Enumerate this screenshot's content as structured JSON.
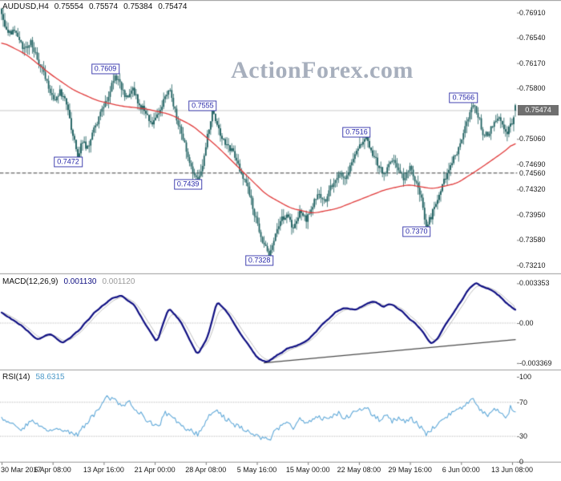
{
  "colors": {
    "background": "#ffffff",
    "candle": "#1d5f5f",
    "ma_line": "#e03a3a",
    "macd_line": "#0f0f82",
    "signal_line": "#bdbdbd",
    "trendline": "#4a4a4a",
    "rsi_line": "#5fa8d8",
    "watermark": "#a7afbd",
    "swing_label": "#2424a8",
    "separator": "#9b9b9b",
    "current_price_line": "#c8c8c8",
    "current_price_tag_bg": "#6f6f6f",
    "dashed_level_color": "#3a3a3a",
    "level_dotted": "#c4c4c4"
  },
  "price_panel": {
    "title": "AUDUSD,H4",
    "open": "0.75554",
    "high": "0.75574",
    "low": "0.75384",
    "close": "0.75474",
    "watermark": "ActionForex.com",
    "current_price_label": "0.75474",
    "dashed_level_label": "0.74560",
    "axis_labels": [
      "0.76910",
      "0.76540",
      "0.76170",
      "0.75800",
      "0.75060",
      "0.74690",
      "0.74320",
      "0.73950",
      "0.73580",
      "0.73210"
    ]
  },
  "macd_panel": {
    "title": "MACD(12,26,9)",
    "value_main": "0.001130",
    "value_signal": "0.001120",
    "axis_labels": [
      "0.003353",
      "0.00",
      "-0.003369"
    ]
  },
  "rsi_panel": {
    "title": "RSI(14)",
    "value": "58.6315",
    "axis_labels": [
      "100",
      "70",
      "30",
      "0"
    ]
  },
  "x_axis": {
    "labels": [
      "30 Mar 2017",
      "6 Apr 08:00",
      "13 Apr 16:00",
      "21 Apr 00:00",
      "28 Apr 08:00",
      "5 May 16:00",
      "15 May 00:00",
      "22 May 08:00",
      "29 May 16:00",
      "6 Jun 00:00",
      "13 Jun 08:00"
    ]
  },
  "chart_data": [
    {
      "type": "candlestick",
      "name": "AUDUSD H4",
      "n_candles": 318,
      "y_range": [
        0.7322,
        0.77
      ],
      "current_price": 0.75474,
      "dashed_level": 0.7456,
      "last_candle": {
        "open": 0.75554,
        "high": 0.75574,
        "low": 0.75384,
        "close": 0.75474
      },
      "close_waypoints": [
        [
          0,
          0.7685
        ],
        [
          4,
          0.7658
        ],
        [
          8,
          0.7668
        ],
        [
          14,
          0.7636
        ],
        [
          18,
          0.765
        ],
        [
          24,
          0.7612
        ],
        [
          28,
          0.7588
        ],
        [
          33,
          0.7562
        ],
        [
          36,
          0.7576
        ],
        [
          40,
          0.7556
        ],
        [
          44,
          0.7512
        ],
        [
          47,
          0.7478
        ],
        [
          50,
          0.7504
        ],
        [
          53,
          0.7492
        ],
        [
          57,
          0.752
        ],
        [
          61,
          0.7542
        ],
        [
          65,
          0.7562
        ],
        [
          70,
          0.76
        ],
        [
          73,
          0.7586
        ],
        [
          77,
          0.7566
        ],
        [
          81,
          0.758
        ],
        [
          85,
          0.7556
        ],
        [
          89,
          0.7546
        ],
        [
          93,
          0.7526
        ],
        [
          97,
          0.7542
        ],
        [
          101,
          0.757
        ],
        [
          104,
          0.7576
        ],
        [
          107,
          0.7546
        ],
        [
          110,
          0.752
        ],
        [
          114,
          0.749
        ],
        [
          118,
          0.746
        ],
        [
          121,
          0.7446
        ],
        [
          124,
          0.747
        ],
        [
          127,
          0.7512
        ],
        [
          130,
          0.7548
        ],
        [
          133,
          0.753
        ],
        [
          136,
          0.7506
        ],
        [
          140,
          0.7496
        ],
        [
          144,
          0.748
        ],
        [
          148,
          0.7456
        ],
        [
          152,
          0.7436
        ],
        [
          156,
          0.7396
        ],
        [
          160,
          0.736
        ],
        [
          165,
          0.7336
        ],
        [
          168,
          0.7356
        ],
        [
          172,
          0.7386
        ],
        [
          176,
          0.7396
        ],
        [
          180,
          0.7372
        ],
        [
          184,
          0.74
        ],
        [
          188,
          0.7386
        ],
        [
          192,
          0.741
        ],
        [
          196,
          0.7426
        ],
        [
          200,
          0.7416
        ],
        [
          204,
          0.744
        ],
        [
          208,
          0.7456
        ],
        [
          212,
          0.7446
        ],
        [
          216,
          0.747
        ],
        [
          220,
          0.749
        ],
        [
          225,
          0.7508
        ],
        [
          228,
          0.749
        ],
        [
          232,
          0.747
        ],
        [
          236,
          0.7452
        ],
        [
          240,
          0.7476
        ],
        [
          244,
          0.7466
        ],
        [
          248,
          0.7446
        ],
        [
          252,
          0.7462
        ],
        [
          256,
          0.744
        ],
        [
          259,
          0.7416
        ],
        [
          262,
          0.738
        ],
        [
          265,
          0.7392
        ],
        [
          268,
          0.7412
        ],
        [
          272,
          0.7438
        ],
        [
          276,
          0.7462
        ],
        [
          280,
          0.7482
        ],
        [
          284,
          0.7506
        ],
        [
          288,
          0.7536
        ],
        [
          291,
          0.7556
        ],
        [
          294,
          0.754
        ],
        [
          297,
          0.7516
        ],
        [
          300,
          0.751
        ],
        [
          303,
          0.7528
        ],
        [
          306,
          0.754
        ],
        [
          309,
          0.7528
        ],
        [
          312,
          0.7516
        ],
        [
          315,
          0.7532
        ],
        [
          317,
          0.7547
        ]
      ],
      "ma_waypoints": [
        [
          0,
          0.7648
        ],
        [
          15,
          0.763
        ],
        [
          30,
          0.7601
        ],
        [
          44,
          0.7578
        ],
        [
          59,
          0.7562
        ],
        [
          74,
          0.7554
        ],
        [
          89,
          0.755
        ],
        [
          104,
          0.7542
        ],
        [
          118,
          0.7525
        ],
        [
          133,
          0.7495
        ],
        [
          148,
          0.746
        ],
        [
          163,
          0.7425
        ],
        [
          178,
          0.7405
        ],
        [
          192,
          0.7397
        ],
        [
          207,
          0.7404
        ],
        [
          222,
          0.7418
        ],
        [
          237,
          0.7432
        ],
        [
          251,
          0.7439
        ],
        [
          266,
          0.7433
        ],
        [
          281,
          0.7441
        ],
        [
          296,
          0.7464
        ],
        [
          311,
          0.7489
        ],
        [
          317,
          0.7502
        ]
      ],
      "annotations": [
        {
          "label": "0.7609",
          "index": 70,
          "price": 0.7609,
          "kind": "high"
        },
        {
          "label": "0.7555",
          "index": 130,
          "price": 0.7555,
          "kind": "high"
        },
        {
          "label": "0.7516",
          "index": 225,
          "price": 0.7516,
          "kind": "high"
        },
        {
          "label": "0.7566",
          "index": 291,
          "price": 0.7566,
          "kind": "high"
        },
        {
          "label": "0.7472",
          "index": 47,
          "price": 0.7472,
          "kind": "low"
        },
        {
          "label": "0.7439",
          "index": 121,
          "price": 0.7439,
          "kind": "low"
        },
        {
          "label": "0.7328",
          "index": 165,
          "price": 0.7328,
          "kind": "low"
        },
        {
          "label": "0.7370",
          "index": 262,
          "price": 0.737,
          "kind": "low"
        }
      ]
    },
    {
      "type": "line",
      "name": "MACD(12,26,9)",
      "current_main": 0.00113,
      "current_signal": 0.00112,
      "y_range": [
        -0.003369,
        0.003353
      ],
      "macd_waypoints": [
        [
          0,
          0.0009
        ],
        [
          12,
          -0.0002
        ],
        [
          22,
          -0.0014
        ],
        [
          30,
          -0.0009
        ],
        [
          38,
          -0.0017
        ],
        [
          48,
          -0.0006
        ],
        [
          58,
          0.001
        ],
        [
          68,
          0.0021
        ],
        [
          74,
          0.0023
        ],
        [
          82,
          0.0015
        ],
        [
          90,
          -0.0004
        ],
        [
          96,
          -0.0016
        ],
        [
          103,
          0.0013
        ],
        [
          110,
          0.0002
        ],
        [
          116,
          -0.0014
        ],
        [
          121,
          -0.0027
        ],
        [
          127,
          -0.0012
        ],
        [
          133,
          0.0018
        ],
        [
          139,
          0.001
        ],
        [
          146,
          -0.0006
        ],
        [
          152,
          -0.0018
        ],
        [
          158,
          -0.003
        ],
        [
          164,
          -0.0033
        ],
        [
          171,
          -0.0026
        ],
        [
          177,
          -0.0021
        ],
        [
          183,
          -0.0019
        ],
        [
          189,
          -0.0014
        ],
        [
          195,
          -0.0006
        ],
        [
          201,
          0.0003
        ],
        [
          207,
          0.001
        ],
        [
          213,
          0.0013
        ],
        [
          219,
          0.0011
        ],
        [
          225,
          0.0016
        ],
        [
          230,
          0.0019
        ],
        [
          235,
          0.0014
        ],
        [
          240,
          0.0016
        ],
        [
          245,
          0.0012
        ],
        [
          250,
          0.0006
        ],
        [
          255,
          0.0
        ],
        [
          260,
          -0.0007
        ],
        [
          265,
          -0.0018
        ],
        [
          269,
          -0.0013
        ],
        [
          273,
          -0.0003
        ],
        [
          278,
          0.0007
        ],
        [
          283,
          0.0017
        ],
        [
          288,
          0.0028
        ],
        [
          291,
          0.0032
        ],
        [
          293,
          0.003353
        ],
        [
          296,
          0.0031
        ],
        [
          300,
          0.0029
        ],
        [
          304,
          0.0026
        ],
        [
          308,
          0.0022
        ],
        [
          312,
          0.0016
        ],
        [
          317,
          0.00113
        ]
      ],
      "trendline": {
        "from": [
          162,
          -0.00335
        ],
        "to": [
          317,
          -0.0014
        ]
      }
    },
    {
      "type": "line",
      "name": "RSI(14)",
      "current": 58.6315,
      "levels": [
        70,
        30
      ],
      "y_range": [
        0,
        100
      ],
      "rsi_waypoints": [
        [
          0,
          52
        ],
        [
          6,
          44
        ],
        [
          12,
          38
        ],
        [
          18,
          49
        ],
        [
          24,
          41
        ],
        [
          30,
          36
        ],
        [
          36,
          40
        ],
        [
          42,
          34
        ],
        [
          47,
          32
        ],
        [
          52,
          45
        ],
        [
          58,
          58
        ],
        [
          64,
          77
        ],
        [
          70,
          72
        ],
        [
          74,
          66
        ],
        [
          78,
          71
        ],
        [
          83,
          62
        ],
        [
          88,
          52
        ],
        [
          93,
          45
        ],
        [
          97,
          42
        ],
        [
          101,
          57
        ],
        [
          105,
          52
        ],
        [
          110,
          44
        ],
        [
          115,
          38
        ],
        [
          121,
          32
        ],
        [
          125,
          44
        ],
        [
          130,
          60
        ],
        [
          133,
          62
        ],
        [
          137,
          53
        ],
        [
          141,
          47
        ],
        [
          146,
          41
        ],
        [
          151,
          37
        ],
        [
          156,
          31
        ],
        [
          160,
          28
        ],
        [
          165,
          26
        ],
        [
          169,
          36
        ],
        [
          173,
          45
        ],
        [
          177,
          48
        ],
        [
          180,
          41
        ],
        [
          184,
          50
        ],
        [
          188,
          45
        ],
        [
          192,
          51
        ],
        [
          196,
          54
        ],
        [
          200,
          49
        ],
        [
          204,
          54
        ],
        [
          208,
          57
        ],
        [
          212,
          51
        ],
        [
          216,
          56
        ],
        [
          220,
          60
        ],
        [
          225,
          63
        ],
        [
          229,
          55
        ],
        [
          233,
          50
        ],
        [
          237,
          54
        ],
        [
          241,
          48
        ],
        [
          245,
          52
        ],
        [
          249,
          47
        ],
        [
          253,
          50
        ],
        [
          257,
          43
        ],
        [
          260,
          38
        ],
        [
          262,
          33
        ],
        [
          265,
          37
        ],
        [
          268,
          43
        ],
        [
          272,
          50
        ],
        [
          276,
          56
        ],
        [
          280,
          60
        ],
        [
          284,
          64
        ],
        [
          288,
          69
        ],
        [
          291,
          75
        ],
        [
          294,
          65
        ],
        [
          297,
          57
        ],
        [
          300,
          54
        ],
        [
          303,
          60
        ],
        [
          306,
          63
        ],
        [
          309,
          57
        ],
        [
          312,
          52
        ],
        [
          314,
          64
        ],
        [
          317,
          58.63
        ]
      ]
    }
  ]
}
